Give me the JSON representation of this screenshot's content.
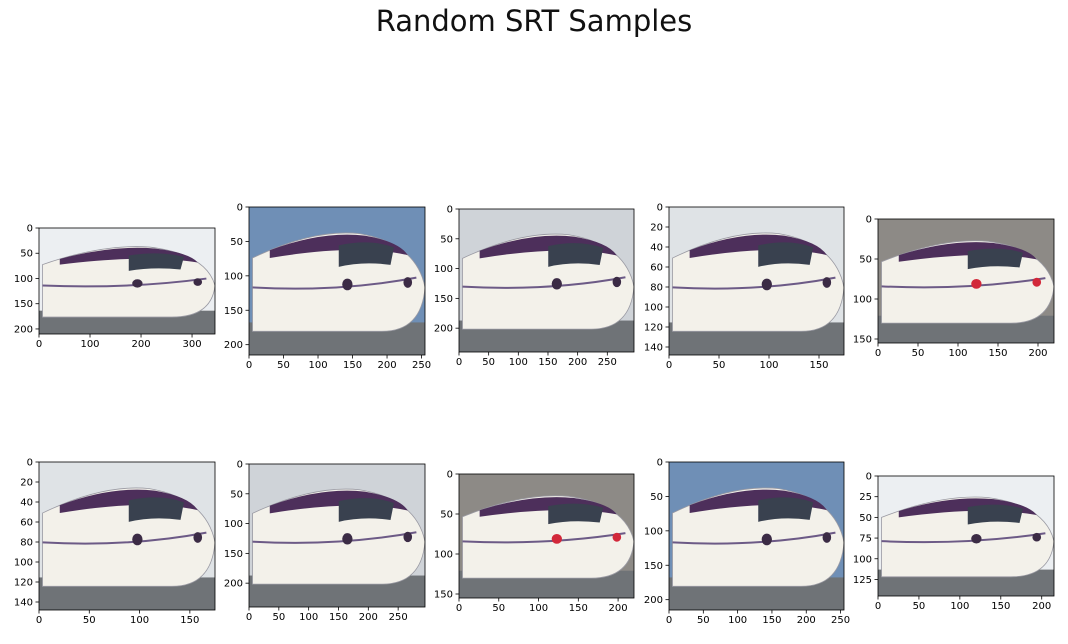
{
  "title": "Random SRT Samples",
  "colors": {
    "sky": "#d7dde4",
    "body": "#f3f1ea",
    "purple": "#4d2f5b",
    "window": "#39414f",
    "ground": "#6f7377",
    "stripe": "#6c5a86",
    "lamp": "#d2283a"
  },
  "chart_data": [
    {
      "type": "image",
      "x_ticks": [
        0,
        100,
        200,
        300
      ],
      "y_ticks": [
        0,
        50,
        100,
        150,
        200
      ],
      "xlim": [
        0,
        345
      ],
      "ylim": [
        210,
        0
      ],
      "scene": "light"
    },
    {
      "type": "image",
      "x_ticks": [
        0,
        50,
        100,
        150,
        200,
        250
      ],
      "y_ticks": [
        0,
        50,
        100,
        150,
        200
      ],
      "xlim": [
        0,
        255
      ],
      "ylim": [
        215,
        0
      ],
      "scene": "blue"
    },
    {
      "type": "image",
      "x_ticks": [
        0,
        50,
        100,
        150,
        200,
        250
      ],
      "y_ticks": [
        0,
        50,
        100,
        150,
        200
      ],
      "xlim": [
        0,
        295
      ],
      "ylim": [
        240,
        0
      ],
      "scene": "station"
    },
    {
      "type": "image",
      "x_ticks": [
        0,
        50,
        100,
        150
      ],
      "y_ticks": [
        0,
        20,
        40,
        60,
        80,
        100,
        120,
        140
      ],
      "xlim": [
        0,
        175
      ],
      "ylim": [
        148,
        0
      ],
      "scene": "overcast"
    },
    {
      "type": "image",
      "x_ticks": [
        0,
        50,
        100,
        150,
        200
      ],
      "y_ticks": [
        0,
        50,
        100,
        150
      ],
      "xlim": [
        0,
        220
      ],
      "ylim": [
        155,
        0
      ],
      "scene": "night"
    },
    {
      "type": "image",
      "x_ticks": [
        0,
        50,
        100,
        150
      ],
      "y_ticks": [
        0,
        20,
        40,
        60,
        80,
        100,
        120,
        140
      ],
      "xlim": [
        0,
        175
      ],
      "ylim": [
        148,
        0
      ],
      "scene": "overcast"
    },
    {
      "type": "image",
      "x_ticks": [
        0,
        50,
        100,
        150,
        200,
        250
      ],
      "y_ticks": [
        0,
        50,
        100,
        150,
        200
      ],
      "xlim": [
        0,
        295
      ],
      "ylim": [
        240,
        0
      ],
      "scene": "station"
    },
    {
      "type": "image",
      "x_ticks": [
        0,
        50,
        100,
        150,
        200
      ],
      "y_ticks": [
        0,
        50,
        100,
        150
      ],
      "xlim": [
        0,
        220
      ],
      "ylim": [
        155,
        0
      ],
      "scene": "night"
    },
    {
      "type": "image",
      "x_ticks": [
        0,
        50,
        100,
        150,
        200,
        250
      ],
      "y_ticks": [
        0,
        50,
        100,
        150,
        200
      ],
      "xlim": [
        0,
        255
      ],
      "ylim": [
        215,
        0
      ],
      "scene": "blue"
    },
    {
      "type": "image",
      "x_ticks": [
        0,
        50,
        100,
        150,
        200
      ],
      "y_ticks": [
        0,
        25,
        50,
        75,
        100,
        125
      ],
      "xlim": [
        0,
        215
      ],
      "ylim": [
        145,
        0
      ],
      "scene": "light"
    }
  ]
}
